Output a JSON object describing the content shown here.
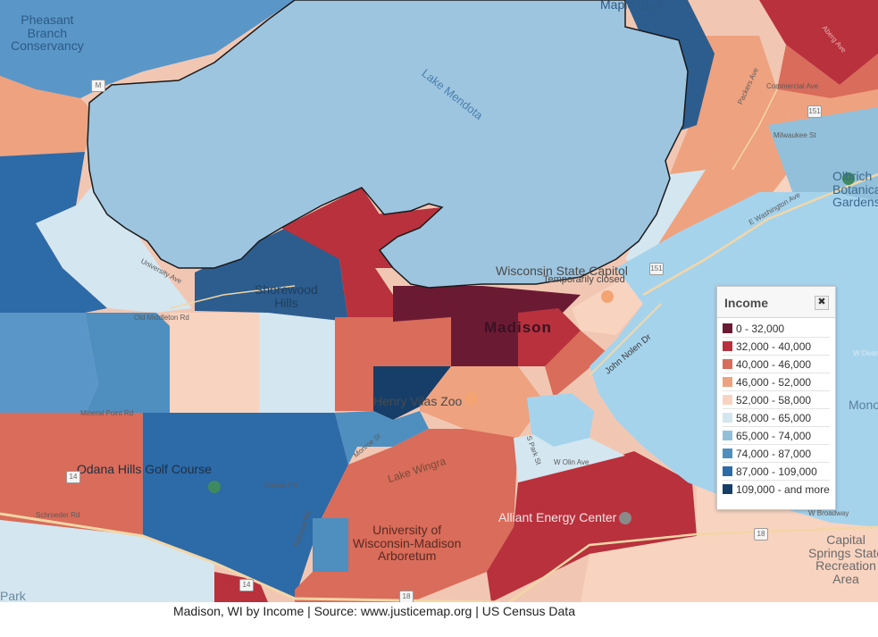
{
  "legend": {
    "title": "Income",
    "close_label": "✖",
    "items": [
      {
        "label": "0 - 32,000",
        "color": "#6b1a34"
      },
      {
        "label": "32,000 - 40,000",
        "color": "#b8313d"
      },
      {
        "label": "40,000 - 46,000",
        "color": "#d96c5a"
      },
      {
        "label": "46,000 - 52,000",
        "color": "#eea27f"
      },
      {
        "label": "52,000 - 58,000",
        "color": "#f8d3c0"
      },
      {
        "label": "58,000 - 65,000",
        "color": "#d4e6f0"
      },
      {
        "label": "65,000 - 74,000",
        "color": "#92c0da"
      },
      {
        "label": "74,000 - 87,000",
        "color": "#4e8fc0"
      },
      {
        "label": "87,000 - 109,000",
        "color": "#2d6aa8"
      },
      {
        "label": "109,000 - and more",
        "color": "#163e69"
      }
    ]
  },
  "map": {
    "water_color": "#a6d3ec",
    "lake_mendota_color": "#9ec5df",
    "labels": {
      "pheasant_branch": "Pheasant\nBranch\nConservancy",
      "maple_bluff": "Maple Bluff",
      "lake_mendota": "Lake Mendota",
      "shorewood_hills": "Shorewood\nHills",
      "capitol": "Wisconsin State Capitol",
      "capitol_status": "Temporarily closed",
      "madison": "Madison",
      "henry_vilas_zoo": "Henry Vilas Zoo",
      "odana_hills": "Odana Hills Golf Course",
      "lake_wingra": "Lake Wingra",
      "arboretum": "University of\nWisconsin-Madison\nArboretum",
      "alliant": "Alliant Energy Center",
      "olbrich": "Olbrich\nBotanical\nGardens",
      "capital_springs": "Capital\nSprings State\nRecreation\nArea",
      "monona": "Mono",
      "park": "Park"
    },
    "streets": {
      "packers": "Packers Ave",
      "commercial": "Commercial Ave",
      "milwaukee": "Milwaukee St",
      "aberg": "Aberg Ave",
      "east_wash": "E Washington Ave",
      "john_nolen": "John Nolen Dr",
      "university": "University Ave",
      "old_middleton": "Old Middleton Rd",
      "mineral_point": "Mineral Point Rd",
      "odana": "Odana Rd",
      "nakoma": "Nakoma Rd",
      "s_park": "S Park St",
      "w_olin": "W Olin Ave",
      "schroeder": "Schroeder Rd",
      "monroe": "Monroe St",
      "w_broadway": "W Broadway",
      "w_dean": "W Dean"
    },
    "shields": {
      "m": "M",
      "us151_a": "151",
      "us151_b": "151",
      "i14_a": "14",
      "i14_b": "14",
      "us18_a": "18",
      "us18_b": "18"
    }
  },
  "caption": "Madison, WI by Income | Source: www.justicemap.org | US Census Data"
}
